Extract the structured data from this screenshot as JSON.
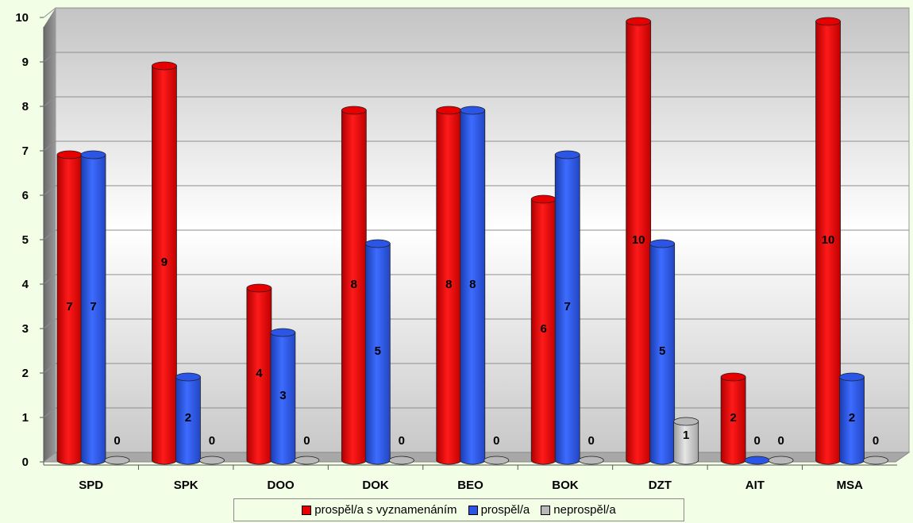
{
  "chart_data": {
    "type": "bar",
    "categories": [
      "SPD",
      "SPK",
      "DOO",
      "DOK",
      "BEO",
      "BOK",
      "DZT",
      "AIT",
      "MSA"
    ],
    "series": [
      {
        "name": "prospěl/a s vyznamenáním",
        "color": "#e80000",
        "values": [
          7,
          9,
          4,
          8,
          8,
          6,
          10,
          2,
          10
        ]
      },
      {
        "name": "prospěl/a",
        "color": "#2a55e6",
        "values": [
          7,
          2,
          3,
          5,
          8,
          7,
          5,
          0,
          2
        ]
      },
      {
        "name": "neprospěl/a",
        "color": "#b8b8b8",
        "values": [
          0,
          0,
          0,
          0,
          0,
          0,
          1,
          0,
          0
        ]
      }
    ],
    "yticks": [
      "0",
      "1",
      "2",
      "3",
      "4",
      "5",
      "6",
      "7",
      "8",
      "9",
      "10"
    ],
    "ylim": [
      0,
      10
    ],
    "grid": true,
    "legend_position": "bottom"
  }
}
